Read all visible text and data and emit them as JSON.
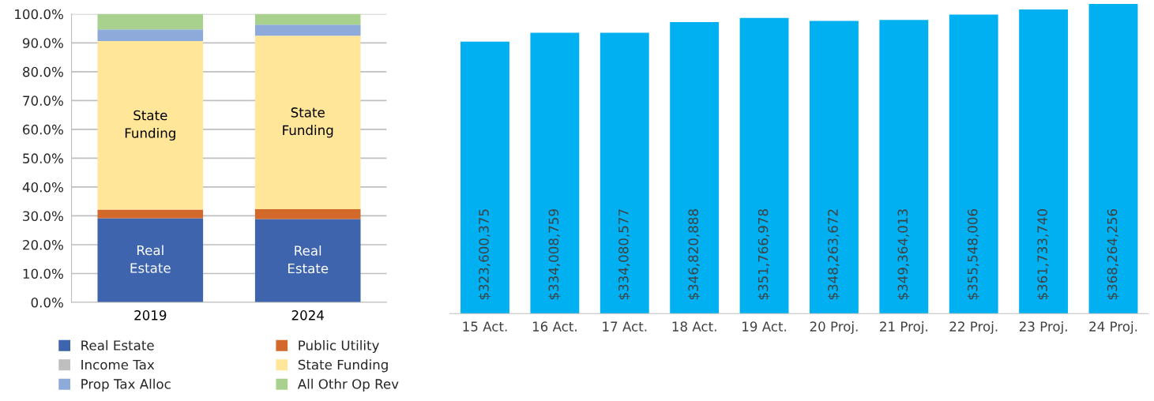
{
  "chart_data": [
    {
      "type": "bar",
      "stacked": true,
      "categories": [
        "2019",
        "2024"
      ],
      "series": [
        {
          "name": "Real Estate",
          "color": "#3d64ad",
          "values": [
            29.2,
            28.9
          ],
          "value_labels": [
            "Real\nEstate",
            "Real\nEstate"
          ]
        },
        {
          "name": "Public Utility",
          "color": "#d2692b",
          "values": [
            3.0,
            3.4
          ]
        },
        {
          "name": "Income Tax",
          "color": "#bfbfbf",
          "values": [
            0.0,
            0.0
          ]
        },
        {
          "name": "State Funding",
          "color": "#ffe699",
          "values": [
            58.4,
            60.2
          ],
          "value_labels": [
            "State\nFunding",
            "State\nFunding"
          ]
        },
        {
          "name": "Prop Tax Alloc",
          "color": "#8eaadb",
          "values": [
            4.1,
            3.8
          ]
        },
        {
          "name": "All Othr Op Rev",
          "color": "#a9d18e",
          "values": [
            5.3,
            3.7
          ]
        }
      ],
      "ylim": [
        0,
        100
      ],
      "yticks": [
        {
          "value": 0,
          "label": "0.0%"
        },
        {
          "value": 10,
          "label": "10.0%"
        },
        {
          "value": 20,
          "label": "20.0%"
        },
        {
          "value": 30,
          "label": "30.0%"
        },
        {
          "value": 40,
          "label": "40.0%"
        },
        {
          "value": 50,
          "label": "50.0%"
        },
        {
          "value": 60,
          "label": "60.0%"
        },
        {
          "value": 70,
          "label": "70.0%"
        },
        {
          "value": 80,
          "label": "80.0%"
        },
        {
          "value": 90,
          "label": "90.0%"
        },
        {
          "value": 100,
          "label": "100.0%"
        }
      ],
      "grid": "y",
      "legend": "bottom"
    },
    {
      "type": "bar",
      "categories": [
        "15 Act.",
        "16 Act.",
        "17 Act.",
        "18 Act.",
        "19 Act.",
        "20 Proj.",
        "21 Proj.",
        "22 Proj.",
        "23 Proj.",
        "24 Proj."
      ],
      "values": [
        323600375,
        334008759,
        334080577,
        346820888,
        351766978,
        348263672,
        349364013,
        355548006,
        361733740,
        368264256
      ],
      "value_labels": [
        "$323,600,375",
        "$334,008,759",
        "$334,080,577",
        "$346,820,888",
        "$351,766,978",
        "$348,263,672",
        "$349,364,013",
        "$355,548,006",
        "$361,733,740",
        "$368,264,256"
      ],
      "color": "#00b0f0",
      "tick_labels": "x"
    }
  ]
}
